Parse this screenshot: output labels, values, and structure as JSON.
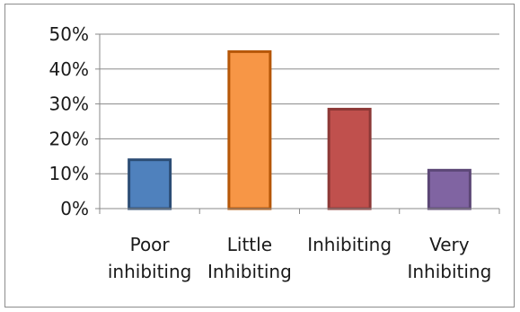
{
  "chart_data": {
    "type": "bar",
    "title": "",
    "xlabel": "",
    "ylabel": "",
    "categories": [
      [
        "Poor",
        "inhibiting"
      ],
      [
        "Little",
        "Inhibiting"
      ],
      [
        "Inhibiting"
      ],
      [
        "Very",
        "Inhibiting"
      ]
    ],
    "values": [
      14,
      45,
      28.5,
      11
    ],
    "ylim": [
      0,
      50
    ],
    "yticks": [
      0,
      10,
      20,
      30,
      40,
      50
    ],
    "ytick_labels": [
      "0%",
      "10%",
      "20%",
      "30%",
      "40%",
      "50%"
    ],
    "grid": true,
    "legend": "none",
    "colors": [
      {
        "fill": "#4f81bd",
        "stroke": "#2c4d75"
      },
      {
        "fill": "#f79646",
        "stroke": "#b65708"
      },
      {
        "fill": "#c0504d",
        "stroke": "#8c3836"
      },
      {
        "fill": "#8064a2",
        "stroke": "#5c4776"
      }
    ]
  }
}
